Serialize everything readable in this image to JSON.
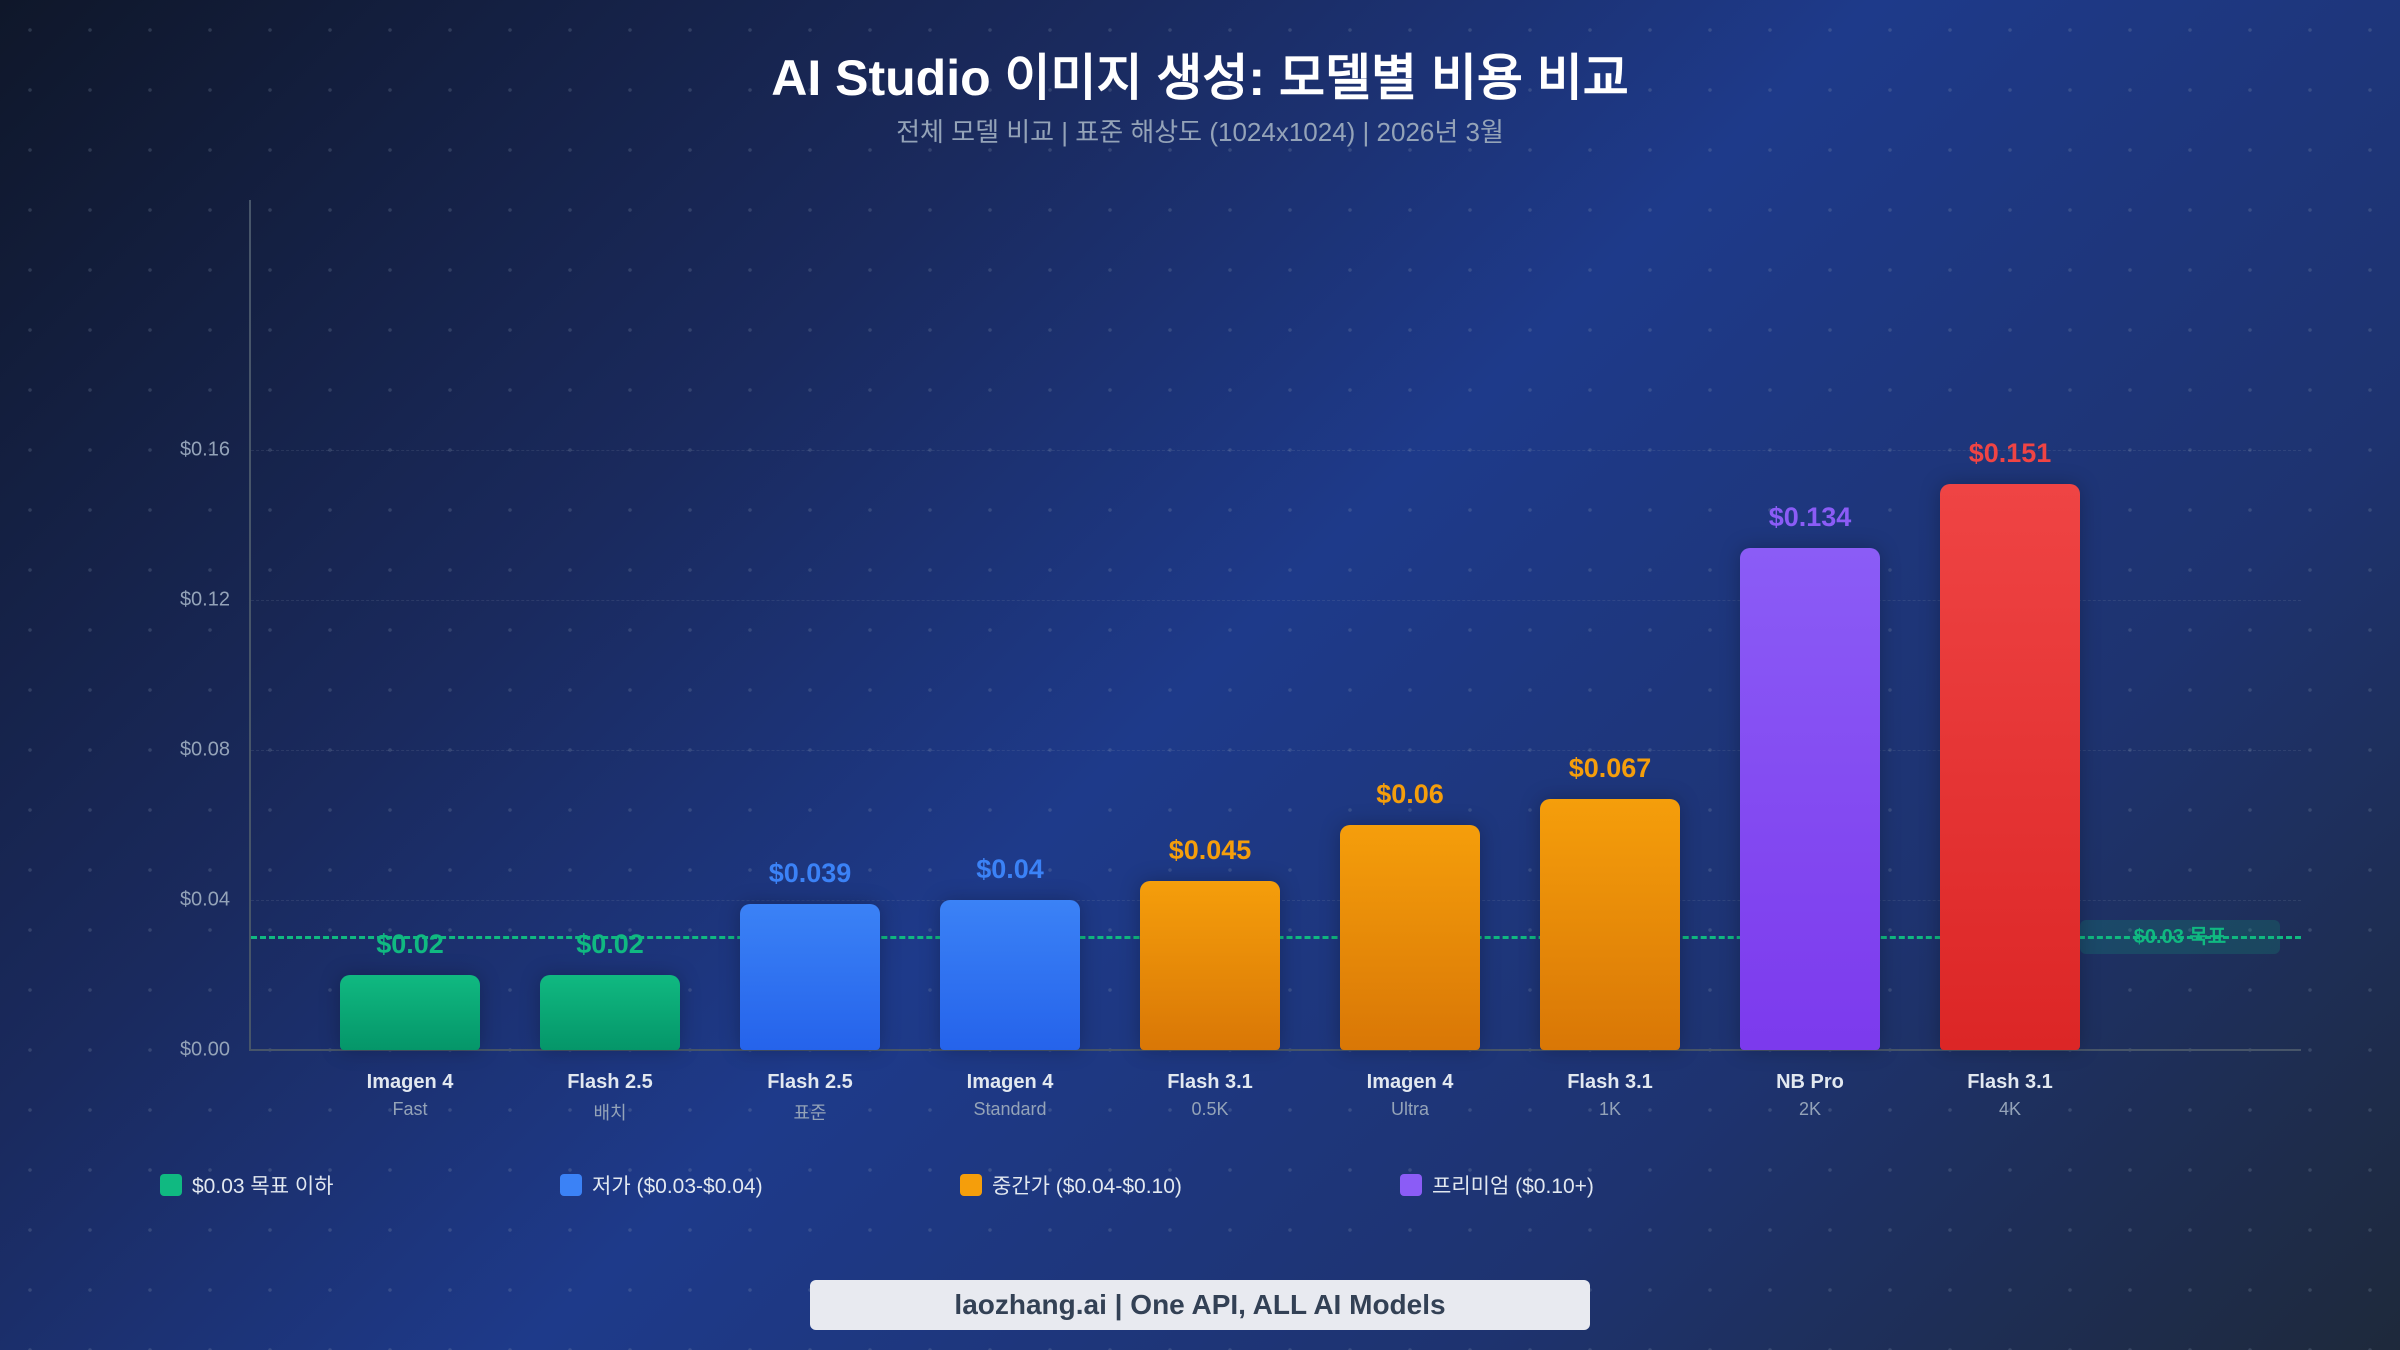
{
  "header": {
    "title": "AI Studio 이미지 생성: 모델별 비용 비교",
    "subtitle": "전체 모델 비교 | 표준 해상도 (1024x1024) | 2026년 3월"
  },
  "colors": {
    "green": "#10b981",
    "blue": "#3b82f6",
    "orange": "#f59e0b",
    "purple": "#8b5cf6",
    "red": "#ef4444",
    "axis": "#475569",
    "tick_text": "#94a3b8"
  },
  "target": {
    "value": 0.03,
    "label": "$0.03 목표"
  },
  "legend": [
    {
      "label": "$0.03 목표 이하",
      "color": "#10b981"
    },
    {
      "label": "저가 ($0.03-$0.04)",
      "color": "#3b82f6"
    },
    {
      "label": "중간가 ($0.04-$0.10)",
      "color": "#f59e0b"
    },
    {
      "label": "프리미엄 ($0.10+)",
      "color": "#8b5cf6"
    }
  ],
  "footer": {
    "text": "laozhang.ai | One API, ALL AI Models"
  },
  "chart_data": {
    "type": "bar",
    "title": "AI Studio 이미지 생성: 모델별 비용 비교",
    "subtitle": "전체 모델 비교 | 표준 해상도 (1024x1024) | 2026년 3월",
    "xlabel": "",
    "ylabel": "",
    "ylim": [
      0,
      0.16
    ],
    "yticks": [
      "$0.00",
      "$0.04",
      "$0.08",
      "$0.12",
      "$0.16"
    ],
    "grid": true,
    "legend_position": "bottom-left",
    "categories": [
      "Imagen 4 Fast",
      "Flash 2.5 배치",
      "Flash 2.5 표준",
      "Imagen 4 Standard",
      "Flash 3.1 0.5K",
      "Imagen 4 Ultra",
      "Flash 3.1 1K",
      "NB Pro 2K",
      "Flash 3.1 4K"
    ],
    "values": [
      0.02,
      0.02,
      0.039,
      0.04,
      0.045,
      0.06,
      0.067,
      0.134,
      0.151
    ],
    "bars": [
      {
        "name": "Imagen 4",
        "sub": "Fast",
        "value": 0.02,
        "label": "$0.02",
        "tier": "green"
      },
      {
        "name": "Flash 2.5",
        "sub": "배치",
        "value": 0.02,
        "label": "$0.02",
        "tier": "green"
      },
      {
        "name": "Flash 2.5",
        "sub": "표준",
        "value": 0.039,
        "label": "$0.039",
        "tier": "blue"
      },
      {
        "name": "Imagen 4",
        "sub": "Standard",
        "value": 0.04,
        "label": "$0.04",
        "tier": "blue"
      },
      {
        "name": "Flash 3.1",
        "sub": "0.5K",
        "value": 0.045,
        "label": "$0.045",
        "tier": "orange"
      },
      {
        "name": "Imagen 4",
        "sub": "Ultra",
        "value": 0.06,
        "label": "$0.06",
        "tier": "orange"
      },
      {
        "name": "Flash 3.1",
        "sub": "1K",
        "value": 0.067,
        "label": "$0.067",
        "tier": "orange"
      },
      {
        "name": "NB Pro",
        "sub": "2K",
        "value": 0.134,
        "label": "$0.134",
        "tier": "purple"
      },
      {
        "name": "Flash 3.1",
        "sub": "4K",
        "value": 0.151,
        "label": "$0.151",
        "tier": "red"
      }
    ],
    "annotations": [
      {
        "type": "hline",
        "y": 0.03,
        "label": "$0.03 목표",
        "color": "#10b981",
        "style": "dashed"
      }
    ]
  }
}
